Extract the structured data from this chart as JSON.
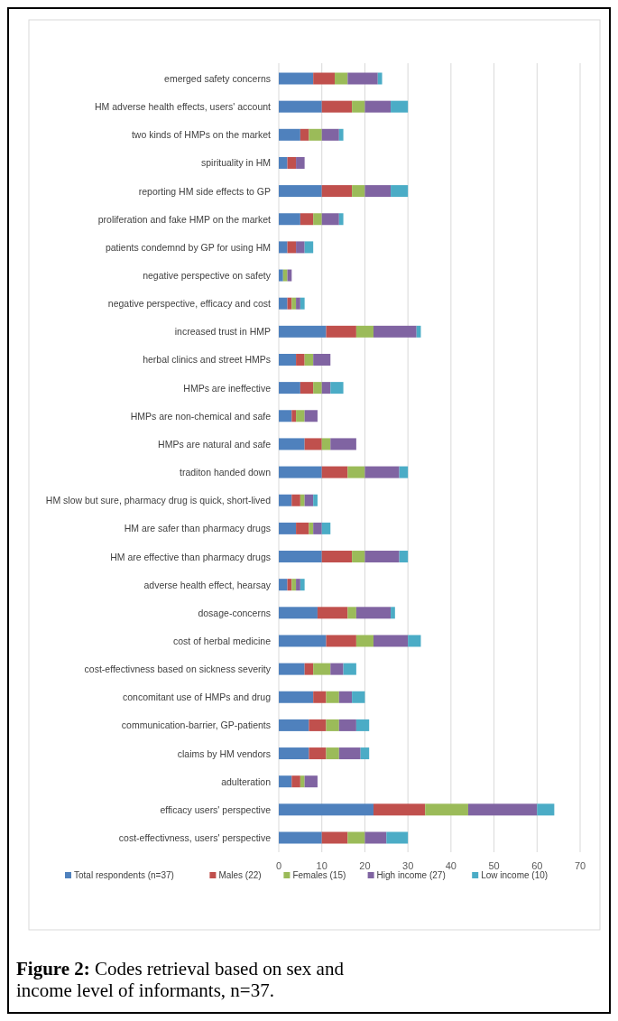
{
  "chart_data": {
    "type": "bar",
    "orientation": "horizontal",
    "stacked": true,
    "categories": [
      "emerged safety concerns",
      "HM adverse health effects, users' account",
      "two kinds of HMPs on the market",
      "spirituality in HM",
      "reporting HM side effects  to GP",
      "proliferation and fake HMP on the market",
      "patients condemnd by GP for using HM",
      "negative perspective on safety",
      "negative perspective, efficacy and cost",
      "increased trust in HMP",
      "herbal clinics and street HMPs",
      "HMPs are ineffective",
      "HMPs are non-chemical and safe",
      "HMPs are natural and safe",
      "traditon handed down",
      "HM slow but sure, pharmacy drug is quick, short-lived",
      "HM are safer than pharmacy drugs",
      "HM are effective than pharmacy drugs",
      "adverse health effect, hearsay",
      "dosage-concerns",
      "cost of herbal medicine",
      "cost-effectivness based on sickness severity",
      "concomitant use of HMPs and drug",
      "communication-barrier, GP-patients",
      "claims by HM vendors",
      "adulteration",
      "efficacy users' perspective",
      "cost-effectivness, users' perspective"
    ],
    "series": [
      {
        "name": "Total respondents (n=37)",
        "color": "#4f81bd",
        "values": [
          8,
          10,
          5,
          2,
          10,
          5,
          2,
          1,
          2,
          11,
          4,
          5,
          3,
          6,
          10,
          3,
          4,
          10,
          2,
          9,
          11,
          6,
          8,
          7,
          7,
          3,
          22,
          10
        ]
      },
      {
        "name": "Males (22)",
        "color": "#c0504d",
        "values": [
          5,
          7,
          2,
          2,
          7,
          3,
          2,
          0,
          1,
          7,
          2,
          3,
          1,
          4,
          6,
          2,
          3,
          7,
          1,
          7,
          7,
          2,
          3,
          4,
          4,
          2,
          12,
          6
        ]
      },
      {
        "name": "Females (15)",
        "color": "#9bbb59",
        "values": [
          3,
          3,
          3,
          0,
          3,
          2,
          0,
          1,
          1,
          4,
          2,
          2,
          2,
          2,
          4,
          1,
          1,
          3,
          1,
          2,
          4,
          4,
          3,
          3,
          3,
          1,
          10,
          4
        ]
      },
      {
        "name": "High income (27)",
        "color": "#8064a2",
        "values": [
          7,
          6,
          4,
          2,
          6,
          4,
          2,
          1,
          1,
          10,
          4,
          2,
          3,
          6,
          8,
          2,
          2,
          8,
          1,
          8,
          8,
          3,
          3,
          4,
          5,
          3,
          16,
          5
        ]
      },
      {
        "name": "Low income (10)",
        "color": "#4bacc6",
        "values": [
          1,
          4,
          1,
          0,
          4,
          1,
          2,
          0,
          1,
          1,
          0,
          3,
          0,
          0,
          2,
          1,
          2,
          2,
          1,
          1,
          3,
          3,
          3,
          3,
          2,
          0,
          4,
          5
        ]
      }
    ],
    "xlim": [
      0,
      70
    ],
    "xticks": [
      0,
      10,
      20,
      30,
      40,
      50,
      60,
      70
    ],
    "grid": "x",
    "legend": "bottom",
    "annotations": [
      "Figure 2: Codes retrieval based on sex and income level of informants, n=37."
    ]
  }
}
